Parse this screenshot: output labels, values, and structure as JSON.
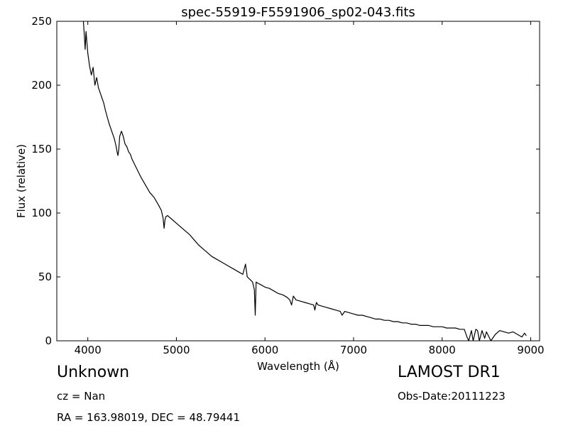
{
  "chart_data": {
    "type": "line",
    "title": "spec-55919-F5591906_sp02-043.fits",
    "xlabel": "Wavelength (Å)",
    "ylabel": "Flux (relative)",
    "xlim": [
      3650,
      9100
    ],
    "ylim": [
      0,
      250
    ],
    "xticks": [
      4000,
      5000,
      6000,
      7000,
      8000,
      9000
    ],
    "yticks": [
      0,
      50,
      100,
      150,
      200,
      250
    ],
    "grid": false,
    "legend": "none",
    "line_color": "#000000",
    "series": [
      {
        "x": [
          3950,
          3960,
          3970,
          3980,
          4000,
          4020,
          4040,
          4060,
          4080,
          4100,
          4120,
          4140,
          4160,
          4180,
          4200,
          4220,
          4240,
          4260,
          4280,
          4300,
          4320,
          4330,
          4340,
          4350,
          4360,
          4380,
          4400,
          4420,
          4440,
          4460,
          4480,
          4500,
          4550,
          4600,
          4650,
          4700,
          4750,
          4800,
          4830,
          4850,
          4861,
          4870,
          4880,
          4900,
          4950,
          5000,
          5050,
          5100,
          5150,
          5200,
          5250,
          5300,
          5350,
          5400,
          5450,
          5500,
          5550,
          5600,
          5650,
          5700,
          5750,
          5780,
          5800,
          5830,
          5860,
          5880,
          5890,
          5900,
          5920,
          5950,
          6000,
          6050,
          6100,
          6150,
          6200,
          6250,
          6280,
          6300,
          6320,
          6350,
          6400,
          6450,
          6500,
          6550,
          6563,
          6580,
          6600,
          6650,
          6700,
          6750,
          6800,
          6850,
          6870,
          6900,
          6950,
          7000,
          7050,
          7100,
          7150,
          7200,
          7250,
          7300,
          7350,
          7400,
          7450,
          7500,
          7550,
          7600,
          7650,
          7700,
          7750,
          7800,
          7850,
          7900,
          7950,
          8000,
          8050,
          8100,
          8150,
          8200,
          8250,
          8280,
          8300,
          8330,
          8350,
          8380,
          8400,
          8420,
          8450,
          8480,
          8500,
          8550,
          8600,
          8650,
          8700,
          8750,
          8800,
          8850,
          8900,
          8930,
          8950
        ],
        "y": [
          250,
          240,
          228,
          242,
          225,
          215,
          208,
          214,
          200,
          206,
          198,
          194,
          190,
          186,
          180,
          175,
          170,
          166,
          162,
          158,
          152,
          148,
          145,
          150,
          160,
          164,
          160,
          154,
          152,
          148,
          146,
          142,
          135,
          128,
          122,
          116,
          112,
          106,
          102,
          96,
          88,
          94,
          97,
          98,
          95,
          92,
          89,
          86,
          83,
          79,
          75,
          72,
          69,
          66,
          64,
          62,
          60,
          58,
          56,
          54,
          52,
          60,
          50,
          48,
          46,
          40,
          20,
          46,
          45,
          44,
          42,
          41,
          39,
          37,
          36,
          34,
          32,
          28,
          35,
          32,
          31,
          30,
          29,
          28,
          24,
          30,
          28,
          27,
          26,
          25,
          24,
          23,
          20,
          23,
          22,
          21,
          20,
          20,
          19,
          18,
          17,
          17,
          16,
          16,
          15,
          15,
          14,
          14,
          13,
          13,
          12,
          12,
          12,
          11,
          11,
          11,
          10,
          10,
          10,
          9,
          9,
          3,
          0,
          8,
          0,
          9,
          8,
          0,
          8,
          2,
          7,
          0,
          5,
          8,
          7,
          6,
          7,
          5,
          3,
          6,
          4
        ]
      }
    ]
  },
  "annotations": {
    "object_class": "Unknown",
    "redshift": "cz = Nan",
    "coordinates": "RA = 163.98019, DEC = 48.79441",
    "survey": "LAMOST DR1",
    "obs_date": "Obs-Date:20111223"
  }
}
